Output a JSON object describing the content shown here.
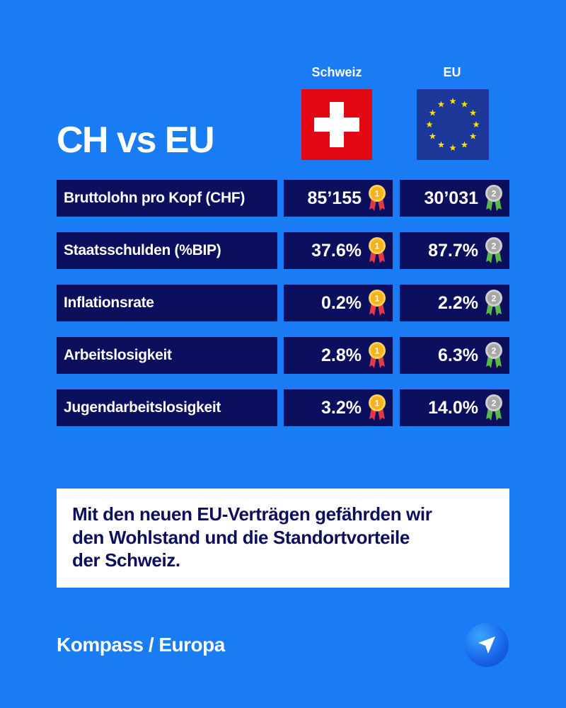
{
  "title": "CH vs EU",
  "columns": {
    "ch": "Schweiz",
    "eu": "EU"
  },
  "rows": [
    {
      "label": "Bruttolohn pro Kopf (CHF)",
      "ch": "85’155",
      "eu": "30’031"
    },
    {
      "label": "Staatsschulden (%BIP)",
      "ch": "37.6%",
      "eu": "87.7%"
    },
    {
      "label": "Inflationsrate",
      "ch": "0.2%",
      "eu": "2.2%"
    },
    {
      "label": "Arbeitslosigkeit",
      "ch": "2.8%",
      "eu": "6.3%"
    },
    {
      "label": "Jugendarbeitslosigkeit",
      "ch": "3.2%",
      "eu": "14.0%"
    }
  ],
  "medals": {
    "ch": "1",
    "eu": "2"
  },
  "note": [
    "Mit den neuen EU-Verträgen gefährden wir",
    "den Wohlstand und die Standortvorteile",
    "der Schweiz."
  ],
  "footer": "Kompass / Europa",
  "icons": {
    "nav": "navigation-arrow-icon",
    "gold": "gold-medal-icon",
    "silver": "silver-medal-icon"
  },
  "colors": {
    "background": "#1a7cf4",
    "cell": "#0c0f5e",
    "swiss_red": "#e30613",
    "eu_blue": "#1d3799"
  }
}
